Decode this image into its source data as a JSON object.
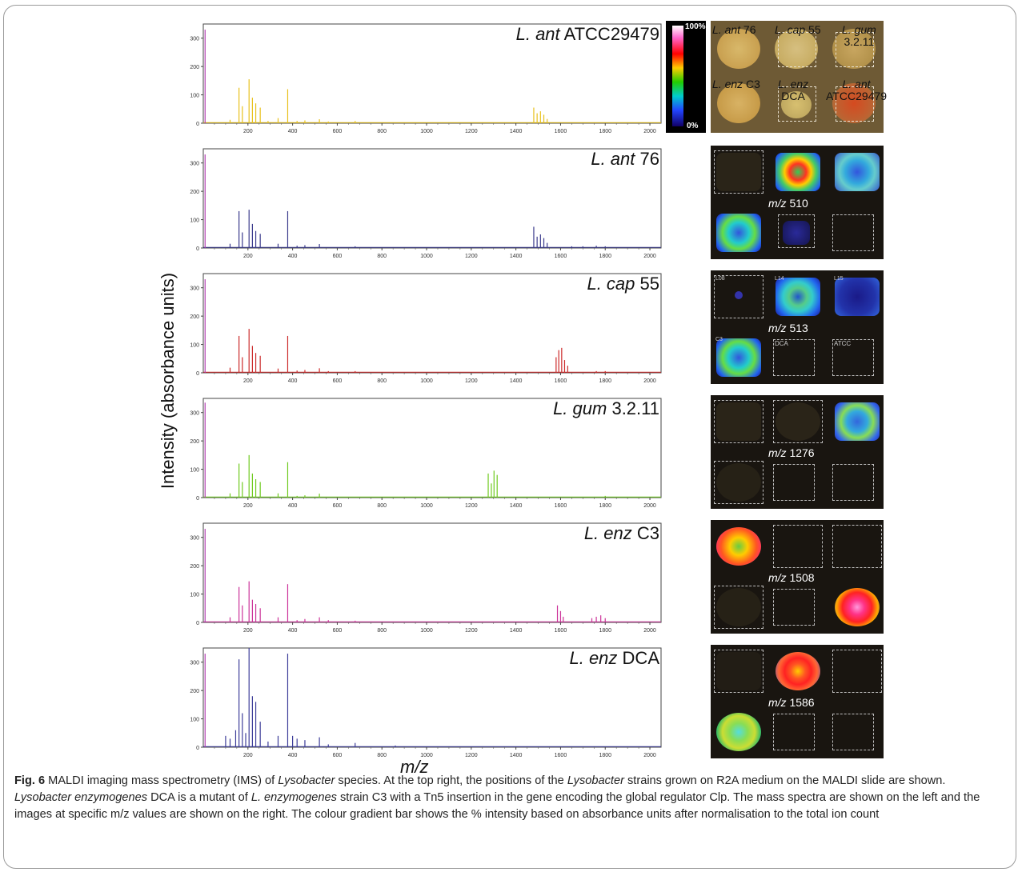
{
  "figure": {
    "y_axis_label": "Intensity (absorbance units)",
    "x_axis_label": "m/z",
    "colorbar": {
      "top_label": "100%",
      "bottom_label": "0%"
    },
    "photo_labels": [
      {
        "id": "ant76",
        "prefix": "L. ant",
        "suffix": "76"
      },
      {
        "id": "cap55",
        "prefix": "L. cap",
        "suffix": "55"
      },
      {
        "id": "gum",
        "prefix": "L. gum",
        "suffix": "3.2.11"
      },
      {
        "id": "enzc3",
        "prefix": "L. enz",
        "suffix": "C3"
      },
      {
        "id": "enzdca",
        "prefix": "L. enz",
        "suffix": "DCA"
      },
      {
        "id": "atcc",
        "prefix": "L. ant",
        "suffix": "ATCC29479"
      }
    ],
    "ims_panels": [
      {
        "mz_prefix": "m/z",
        "mz_value": "510"
      },
      {
        "mz_prefix": "m/z",
        "mz_value": "513"
      },
      {
        "mz_prefix": "m/z",
        "mz_value": "1276"
      },
      {
        "mz_prefix": "m/z",
        "mz_value": "1508"
      },
      {
        "mz_prefix": "m/z",
        "mz_value": "1586"
      }
    ],
    "ims_well_tags": [
      "L08",
      "L14",
      "L15",
      "C3",
      "DCA",
      "ATCC"
    ]
  },
  "chart_data": [
    {
      "type": "line",
      "strain_prefix": "L. ant",
      "strain_suffix": "ATCC29479",
      "color": "#e8c11c",
      "xlim": [
        0,
        2050
      ],
      "ylim": [
        0,
        350
      ],
      "x_ticks": [
        200,
        400,
        600,
        800,
        1000,
        1200,
        1400,
        1600,
        1800,
        2000
      ],
      "y_ticks": [
        0,
        100,
        200,
        300
      ],
      "peaks": [
        [
          8,
          330
        ],
        [
          120,
          12
        ],
        [
          160,
          125
        ],
        [
          175,
          60
        ],
        [
          205,
          155
        ],
        [
          220,
          90
        ],
        [
          235,
          70
        ],
        [
          255,
          55
        ],
        [
          290,
          8
        ],
        [
          335,
          18
        ],
        [
          378,
          120
        ],
        [
          420,
          8
        ],
        [
          455,
          10
        ],
        [
          520,
          14
        ],
        [
          560,
          6
        ],
        [
          680,
          8
        ],
        [
          1480,
          55
        ],
        [
          1495,
          35
        ],
        [
          1510,
          42
        ],
        [
          1525,
          30
        ],
        [
          1540,
          15
        ]
      ]
    },
    {
      "type": "line",
      "strain_prefix": "L. ant",
      "strain_suffix": "76",
      "color": "#3a3a8c",
      "xlim": [
        0,
        2050
      ],
      "ylim": [
        0,
        350
      ],
      "x_ticks": [
        200,
        400,
        600,
        800,
        1000,
        1200,
        1400,
        1600,
        1800,
        2000
      ],
      "y_ticks": [
        0,
        100,
        200,
        300
      ],
      "peaks": [
        [
          8,
          330
        ],
        [
          120,
          15
        ],
        [
          160,
          130
        ],
        [
          175,
          55
        ],
        [
          205,
          135
        ],
        [
          220,
          85
        ],
        [
          235,
          60
        ],
        [
          255,
          50
        ],
        [
          335,
          15
        ],
        [
          378,
          130
        ],
        [
          420,
          8
        ],
        [
          455,
          10
        ],
        [
          520,
          14
        ],
        [
          680,
          6
        ],
        [
          1480,
          75
        ],
        [
          1495,
          40
        ],
        [
          1510,
          48
        ],
        [
          1525,
          35
        ],
        [
          1540,
          18
        ],
        [
          1650,
          6
        ],
        [
          1700,
          6
        ],
        [
          1760,
          8
        ],
        [
          1800,
          6
        ]
      ]
    },
    {
      "type": "line",
      "strain_prefix": "L. cap",
      "strain_suffix": "55",
      "color": "#cc2b2b",
      "xlim": [
        0,
        2050
      ],
      "ylim": [
        0,
        350
      ],
      "x_ticks": [
        200,
        400,
        600,
        800,
        1000,
        1200,
        1400,
        1600,
        1800,
        2000
      ],
      "y_ticks": [
        0,
        100,
        200,
        300
      ],
      "peaks": [
        [
          8,
          330
        ],
        [
          120,
          18
        ],
        [
          160,
          130
        ],
        [
          175,
          55
        ],
        [
          205,
          155
        ],
        [
          220,
          95
        ],
        [
          235,
          70
        ],
        [
          255,
          60
        ],
        [
          335,
          15
        ],
        [
          378,
          130
        ],
        [
          420,
          8
        ],
        [
          455,
          10
        ],
        [
          520,
          16
        ],
        [
          560,
          6
        ],
        [
          680,
          6
        ],
        [
          1580,
          55
        ],
        [
          1592,
          80
        ],
        [
          1605,
          88
        ],
        [
          1618,
          45
        ],
        [
          1632,
          25
        ],
        [
          1760,
          6
        ],
        [
          1800,
          6
        ]
      ]
    },
    {
      "type": "line",
      "strain_prefix": "L. gum",
      "strain_suffix": "3.2.11",
      "color": "#6fca1e",
      "xlim": [
        0,
        2050
      ],
      "ylim": [
        0,
        350
      ],
      "x_ticks": [
        200,
        400,
        600,
        800,
        1000,
        1200,
        1400,
        1600,
        1800,
        2000
      ],
      "y_ticks": [
        0,
        100,
        200,
        300
      ],
      "peaks": [
        [
          8,
          335
        ],
        [
          120,
          15
        ],
        [
          160,
          120
        ],
        [
          175,
          55
        ],
        [
          205,
          150
        ],
        [
          220,
          85
        ],
        [
          235,
          65
        ],
        [
          255,
          55
        ],
        [
          335,
          15
        ],
        [
          378,
          125
        ],
        [
          420,
          6
        ],
        [
          455,
          8
        ],
        [
          520,
          14
        ],
        [
          1276,
          85
        ],
        [
          1290,
          50
        ],
        [
          1302,
          95
        ],
        [
          1316,
          80
        ],
        [
          1800,
          6
        ]
      ]
    },
    {
      "type": "line",
      "strain_prefix": "L. enz",
      "strain_suffix": "C3",
      "color": "#cc3399",
      "xlim": [
        0,
        2050
      ],
      "ylim": [
        0,
        350
      ],
      "x_ticks": [
        200,
        400,
        600,
        800,
        1000,
        1200,
        1400,
        1600,
        1800,
        2000
      ],
      "y_ticks": [
        0,
        100,
        200,
        300
      ],
      "peaks": [
        [
          8,
          330
        ],
        [
          120,
          18
        ],
        [
          160,
          125
        ],
        [
          175,
          60
        ],
        [
          205,
          145
        ],
        [
          220,
          80
        ],
        [
          235,
          65
        ],
        [
          255,
          50
        ],
        [
          335,
          18
        ],
        [
          378,
          135
        ],
        [
          420,
          8
        ],
        [
          455,
          12
        ],
        [
          520,
          18
        ],
        [
          560,
          8
        ],
        [
          680,
          6
        ],
        [
          1586,
          60
        ],
        [
          1600,
          40
        ],
        [
          1612,
          20
        ],
        [
          1740,
          15
        ],
        [
          1760,
          20
        ],
        [
          1780,
          25
        ],
        [
          1800,
          15
        ]
      ]
    },
    {
      "type": "line",
      "strain_prefix": "L. enz",
      "strain_suffix": "DCA",
      "color": "#3d3d99",
      "xlim": [
        0,
        2050
      ],
      "ylim": [
        0,
        350
      ],
      "x_ticks": [
        200,
        400,
        600,
        800,
        1000,
        1200,
        1400,
        1600,
        1800,
        2000
      ],
      "y_ticks": [
        0,
        100,
        200,
        300
      ],
      "peaks": [
        [
          8,
          330
        ],
        [
          100,
          40
        ],
        [
          120,
          30
        ],
        [
          145,
          60
        ],
        [
          160,
          310
        ],
        [
          175,
          120
        ],
        [
          190,
          50
        ],
        [
          205,
          350
        ],
        [
          220,
          180
        ],
        [
          235,
          160
        ],
        [
          255,
          90
        ],
        [
          290,
          20
        ],
        [
          335,
          40
        ],
        [
          378,
          330
        ],
        [
          400,
          40
        ],
        [
          420,
          30
        ],
        [
          455,
          25
        ],
        [
          520,
          35
        ],
        [
          560,
          10
        ],
        [
          680,
          15
        ],
        [
          860,
          6
        ]
      ]
    }
  ],
  "caption": {
    "fig_label": "Fig. 6",
    "seg1": " MALDI imaging mass spectrometry (IMS) of ",
    "em1": "Lysobacter",
    "seg2": " species. At the top right, the positions of the ",
    "em2": "Lysobacter",
    "seg3": " strains grown on R2A medium on the MALDI slide are shown. ",
    "em3": "Lysobacter enzymogenes",
    "seg4": " DCA is a mutant of ",
    "em4": "L. enzymogenes",
    "seg5": " strain C3 with a Tn5 insertion in the gene encoding the global regulator Clp. The mass spectra are shown on the left and the images at specific m/z values are shown on the right. The colour gradient bar shows the % intensity based on absorbance units after normalisation to the total ion count"
  }
}
